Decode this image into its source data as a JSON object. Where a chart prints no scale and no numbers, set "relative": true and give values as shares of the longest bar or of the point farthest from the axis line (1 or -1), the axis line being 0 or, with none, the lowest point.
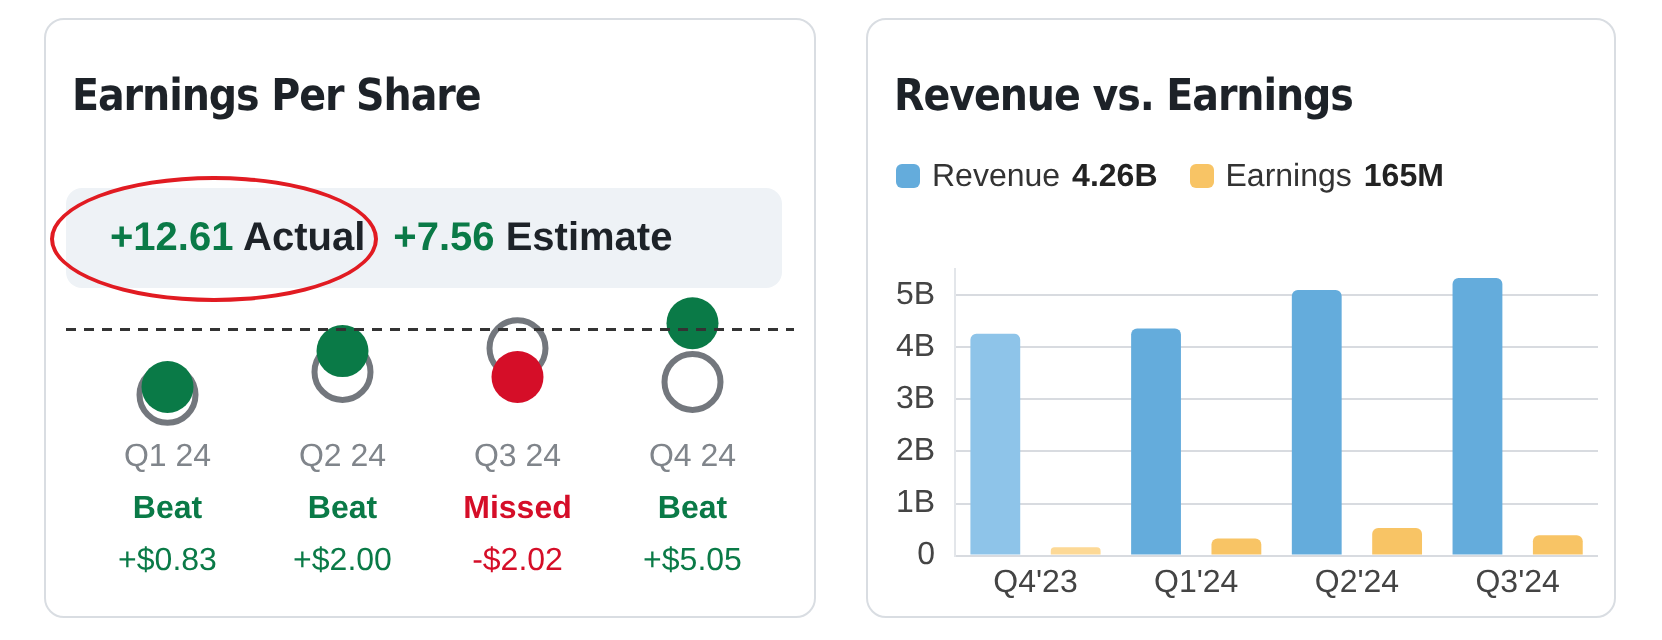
{
  "chart_data": [
    {
      "type": "scatter",
      "title": "Earnings Per Share",
      "categories": [
        "Q1 24",
        "Q2 24",
        "Q3 24",
        "Q4 24"
      ],
      "relative": true,
      "marker": "circle",
      "series": [
        {
          "color": "#0a7a47",
          "colors": [
            "#0a7a47",
            "#0a7a47",
            "#d50e28",
            "#0a7a47"
          ],
          "values": [
            0.11,
            0.61,
            0.25,
            1
          ]
        },
        {
          "color": "#73777d",
          "values": [
            0,
            0.32,
            0.65,
            0.18
          ]
        }
      ],
      "ref_lines": [
        {
          "axis": "y",
          "value": 0.91,
          "color": "#333333",
          "line_style": "dashed"
        }
      ],
      "annotations": [
        "+12.61 Actual",
        "+7.56 Estimate",
        "Beat",
        "Beat",
        "Missed",
        "Beat",
        "+$0.83",
        "+$2.00",
        "-$2.02",
        "+$5.05"
      ]
    },
    {
      "type": "bar",
      "title": "Revenue vs. Earnings",
      "categories": [
        "Q4'23",
        "Q1'24",
        "Q2'24",
        "Q3'24"
      ],
      "series": [
        {
          "name": "Revenue",
          "color": "#64acdc",
          "colors": [
            "#8ec4e9",
            "#64acdc",
            "#64acdc",
            "#64acdc"
          ],
          "values": [
            4.26,
            4.36,
            5.1,
            5.33
          ]
        },
        {
          "name": "Earnings",
          "color": "#f8c465",
          "colors": [
            "#fdd996",
            "#f8c465",
            "#f8c465",
            "#f8c465"
          ],
          "values": [
            0.16,
            0.33,
            0.53,
            0.39
          ]
        }
      ],
      "ylim": [
        0,
        5.5
      ],
      "yticks": [
        {
          "value": 0,
          "label": "0"
        },
        {
          "value": 1,
          "label": "1B"
        },
        {
          "value": 2,
          "label": "2B"
        },
        {
          "value": 3,
          "label": "3B"
        },
        {
          "value": 4,
          "label": "4B"
        },
        {
          "value": 5,
          "label": "5B"
        }
      ],
      "grid": "y",
      "legend": "top left",
      "annotations": [
        "4.26B",
        "165M"
      ]
    }
  ]
}
